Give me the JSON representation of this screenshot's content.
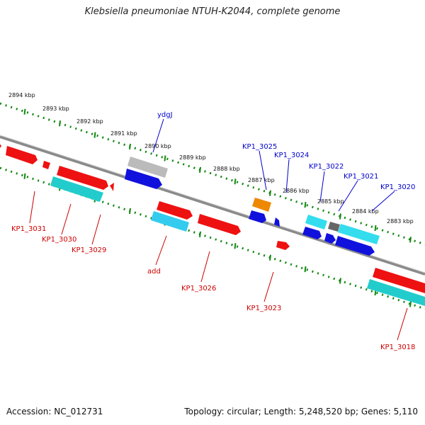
{
  "title": "Klebsiella pneumoniae NTUH-K2044, complete genome",
  "accession": "Accession: NC_012731",
  "topology": "Topology: circular; Length: 5,248,520 bp; Genes: 5,110",
  "ruler_labels": [
    "2894 kbp",
    "2893 kbp",
    "2892 kbp",
    "2891 kbp",
    "2890 kbp",
    "2889 kbp",
    "2888 kbp",
    "2887 kbp",
    "2886 kbp",
    "2885 kbp",
    "2884 kbp",
    "2883 kbp"
  ],
  "genes_above": [
    "ydgJ",
    "KP1_3025",
    "KP1_3024",
    "KP1_3022",
    "KP1_3021",
    "KP1_3020"
  ],
  "genes_below": [
    "KP1_3031",
    "KP1_3030",
    "KP1_3029",
    "add",
    "KP1_3026",
    "KP1_3023",
    "KP1_3018"
  ],
  "colors": {
    "forward_gene": "#ee1111",
    "forward_cds": "#22cccc",
    "reverse_gene": "#1111dd",
    "reverse_cds": "#33ddee",
    "pseudo": "#bbbbbb",
    "rna": "#ee8800",
    "other": "#666666",
    "backbone": "#777777",
    "ruler": "#118811",
    "label_top": "#0000cc",
    "label_bottom": "#cc0000"
  }
}
